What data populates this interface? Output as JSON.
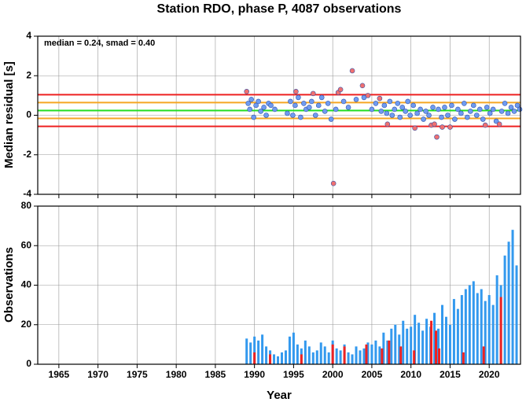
{
  "chart_data": [
    {
      "type": "scatter",
      "title": "Station RDO, phase P, 4087 observations",
      "annotation": "median = 0.24, smad = 0.40",
      "y_label": "Median residual [s]",
      "xlim": [
        1962.3,
        2024
      ],
      "xticks": [
        1965,
        1970,
        1975,
        1980,
        1985,
        1990,
        1995,
        2000,
        2005,
        2010,
        2015,
        2020
      ],
      "ylim": [
        -4,
        4
      ],
      "yticks": [
        -4,
        -2,
        0,
        2,
        4
      ],
      "grid": true,
      "reference_lines": [
        {
          "value": 1.04,
          "color": "#ee2020"
        },
        {
          "value": -0.56,
          "color": "#ee2020"
        },
        {
          "value": 0.64,
          "color": "#f5a623"
        },
        {
          "value": -0.16,
          "color": "#f5a623"
        },
        {
          "value": 0.24,
          "color": "#22dd22"
        }
      ],
      "series": [
        {
          "color": "#6f9bf0",
          "x": [
            1989.2,
            1989.4,
            1989.6,
            1989.9,
            1990.2,
            1990.5,
            1990.8,
            1991.2,
            1991.5,
            1991.8,
            1992.1,
            1992.6,
            1994.2,
            1994.6,
            1994.9,
            1995.2,
            1995.6,
            1995.9,
            1996.3,
            1996.6,
            1997,
            1997.3,
            1997.8,
            1998.2,
            1998.6,
            1999,
            1999.4,
            1999.8,
            2000.4,
            2001.4,
            2002,
            2003,
            2004,
            2005,
            2005.5,
            2006.2,
            2006.6,
            2006.9,
            2007.3,
            2007.6,
            2007.9,
            2008.3,
            2008.6,
            2008.9,
            2009.3,
            2009.6,
            2009.9,
            2010.3,
            2010.8,
            2011.2,
            2011.6,
            2011.9,
            2012.3,
            2012.8,
            2013.5,
            2013.9,
            2014.3,
            2014.7,
            2015.2,
            2015.6,
            2016,
            2016.4,
            2016.8,
            2017.2,
            2017.6,
            2018,
            2018.4,
            2018.8,
            2019.2,
            2019.7,
            2020.1,
            2020.5,
            2020.9,
            2021.6,
            2022,
            2022.4,
            2022.8,
            2023.2,
            2023.6,
            2023.9
          ],
          "values": [
            0.6,
            0.3,
            0.8,
            -0.1,
            0.5,
            0.7,
            0.2,
            0.4,
            0.0,
            0.6,
            0.5,
            0.3,
            0.1,
            0.7,
            0.0,
            0.5,
            0.9,
            -0.1,
            0.6,
            0.3,
            0.4,
            0.7,
            0.0,
            0.5,
            0.9,
            0.2,
            0.6,
            -0.2,
            0.3,
            0.7,
            0.4,
            0.8,
            0.9,
            0.3,
            0.6,
            0.2,
            0.5,
            0.1,
            0.7,
            0.0,
            0.3,
            0.6,
            -0.1,
            0.4,
            0.2,
            0.7,
            0.0,
            0.5,
            0.1,
            0.3,
            -0.2,
            0.2,
            0.0,
            0.4,
            0.3,
            -0.1,
            0.4,
            0.0,
            0.5,
            -0.2,
            0.3,
            0.1,
            0.6,
            -0.1,
            0.2,
            0.5,
            0.0,
            0.3,
            -0.2,
            0.4,
            0.1,
            0.3,
            -0.3,
            0.2,
            0.6,
            0.1,
            0.4,
            0.2,
            0.5,
            0.3
          ]
        },
        {
          "color": "#f07070",
          "x": [
            1989,
            1995.3,
            1997.5,
            2000.1,
            2000.7,
            2001,
            2002.5,
            2003.8,
            2004.5,
            2006,
            2007,
            2010.5,
            2012.6,
            2013,
            2013.3,
            2014,
            2015,
            2019.5,
            2021.3
          ],
          "values": [
            1.2,
            1.2,
            1.1,
            -3.45,
            1.15,
            1.3,
            2.25,
            1.5,
            1.0,
            0.85,
            -0.45,
            -0.65,
            -0.5,
            -0.45,
            -1.1,
            -0.6,
            -0.6,
            -0.5,
            -0.45
          ]
        }
      ]
    },
    {
      "type": "bar",
      "y_label": "Observations",
      "x_label": "Year",
      "xlim": [
        1962.3,
        2024
      ],
      "xticks": [
        1965,
        1970,
        1975,
        1980,
        1985,
        1990,
        1995,
        2000,
        2005,
        2010,
        2015,
        2020
      ],
      "ylim": [
        0,
        80
      ],
      "yticks": [
        0,
        20,
        40,
        60,
        80
      ],
      "grid": true,
      "series": [
        {
          "color": "#3399ee",
          "x": [
            1989,
            1989.5,
            1990,
            1990.5,
            1991,
            1991.5,
            1992,
            1992.5,
            1993,
            1993.5,
            1994,
            1994.5,
            1995,
            1995.5,
            1996,
            1996.5,
            1997,
            1997.5,
            1998,
            1998.5,
            1999,
            1999.5,
            2000,
            2000.5,
            2001,
            2001.5,
            2002,
            2002.5,
            2003,
            2003.5,
            2004,
            2004.5,
            2005,
            2005.5,
            2006,
            2006.5,
            2007,
            2007.5,
            2008,
            2008.5,
            2009,
            2009.5,
            2010,
            2010.5,
            2011,
            2011.5,
            2012,
            2012.5,
            2013,
            2013.5,
            2014,
            2014.5,
            2015,
            2015.5,
            2016,
            2016.5,
            2017,
            2017.5,
            2018,
            2018.5,
            2019,
            2019.5,
            2020,
            2020.5,
            2021,
            2021.5,
            2022,
            2022.5,
            2023,
            2023.5
          ],
          "values": [
            13,
            11,
            14,
            12,
            15,
            9,
            7,
            5,
            4,
            6,
            7,
            14,
            16,
            10,
            8,
            12,
            9,
            6,
            7,
            11,
            9,
            6,
            12,
            8,
            7,
            10,
            6,
            5,
            9,
            7,
            8,
            11,
            10,
            12,
            9,
            16,
            12,
            18,
            20,
            15,
            22,
            18,
            19,
            25,
            21,
            17,
            23,
            19,
            26,
            18,
            30,
            24,
            20,
            33,
            28,
            35,
            38,
            40,
            42,
            36,
            38,
            32,
            35,
            30,
            45,
            40,
            55,
            62,
            68,
            50
          ]
        },
        {
          "color": "#ee2222",
          "x": [
            1990,
            1992,
            1996,
            2000,
            2001.5,
            2004.3,
            2006.3,
            2007.2,
            2008.7,
            2010.4,
            2012.6,
            2013.2,
            2013.6,
            2016.7,
            2019.3,
            2021.5
          ],
          "values": [
            6,
            5,
            5,
            10,
            9,
            10,
            8,
            12,
            9,
            7,
            22,
            17,
            8,
            6,
            9,
            34
          ]
        }
      ]
    }
  ]
}
